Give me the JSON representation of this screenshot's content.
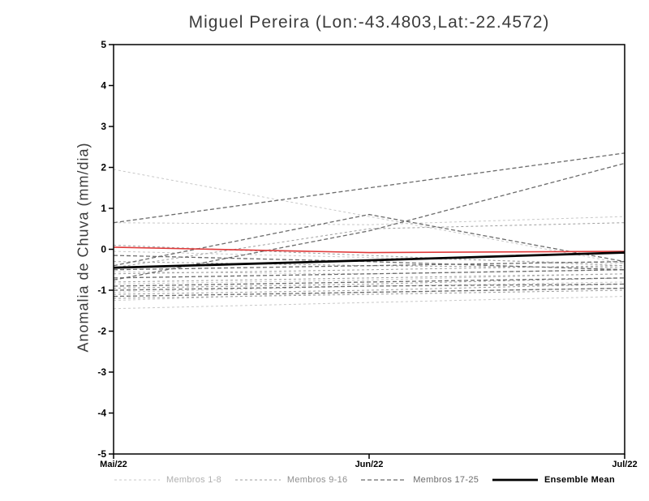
{
  "chart_data": {
    "type": "line",
    "title": "Miguel Pereira (Lon:-43.4803,Lat:-22.4572)",
    "ylabel": "Anomalia de Chuva (mm/dia)",
    "ylim": [
      -5,
      5
    ],
    "y_ticks": [
      5,
      4,
      3,
      2,
      1,
      0,
      -1,
      -2,
      -3,
      -4,
      -5
    ],
    "x_categories": [
      "Mai/22",
      "Jun/22",
      "Jul/22"
    ],
    "grid": false,
    "legend_position": "bottom",
    "groups": [
      {
        "name": "Membros 1-8",
        "color": "#c8c8c8",
        "dash": "3 3",
        "width": 1
      },
      {
        "name": "Membros 9-16",
        "color": "#9e9e9e",
        "dash": "3 3",
        "width": 1
      },
      {
        "name": "Membros 17-25",
        "color": "#6b6b6b",
        "dash": "5 3",
        "width": 1.3
      }
    ],
    "members": [
      {
        "group": 0,
        "values": [
          1.95,
          0.8,
          -0.35
        ]
      },
      {
        "group": 0,
        "values": [
          0.65,
          0.6,
          0.8
        ]
      },
      {
        "group": 0,
        "values": [
          -0.05,
          -0.2,
          -0.35
        ]
      },
      {
        "group": 0,
        "values": [
          -0.55,
          -0.6,
          -0.5
        ]
      },
      {
        "group": 0,
        "values": [
          -0.85,
          -0.75,
          -0.6
        ]
      },
      {
        "group": 0,
        "values": [
          -1.05,
          -0.9,
          -0.8
        ]
      },
      {
        "group": 0,
        "values": [
          -1.25,
          -1.05,
          -0.95
        ]
      },
      {
        "group": 0,
        "values": [
          -1.45,
          -1.3,
          -1.15
        ]
      },
      {
        "group": 1,
        "values": [
          0.1,
          -0.15,
          -0.4
        ]
      },
      {
        "group": 1,
        "values": [
          -0.3,
          -0.4,
          -0.45
        ]
      },
      {
        "group": 1,
        "values": [
          -0.6,
          -0.5,
          -0.4
        ]
      },
      {
        "group": 1,
        "values": [
          -0.8,
          -0.7,
          -0.6
        ]
      },
      {
        "group": 1,
        "values": [
          -0.95,
          -0.85,
          -0.7
        ]
      },
      {
        "group": 1,
        "values": [
          -1.1,
          -1.0,
          -0.85
        ]
      },
      {
        "group": 1,
        "values": [
          -1.2,
          -1.1,
          -1.0
        ]
      },
      {
        "group": 1,
        "values": [
          -0.45,
          0.5,
          0.65
        ]
      },
      {
        "group": 2,
        "values": [
          0.65,
          1.5,
          2.35
        ]
      },
      {
        "group": 2,
        "values": [
          -0.75,
          0.45,
          2.1
        ]
      },
      {
        "group": 2,
        "values": [
          -0.4,
          0.85,
          -0.3
        ]
      },
      {
        "group": 2,
        "values": [
          -0.5,
          -0.4,
          -0.3
        ]
      },
      {
        "group": 2,
        "values": [
          -0.7,
          -0.6,
          -0.5
        ]
      },
      {
        "group": 2,
        "values": [
          -0.9,
          -0.8,
          -0.7
        ]
      },
      {
        "group": 2,
        "values": [
          -1.0,
          -0.9,
          -0.85
        ]
      },
      {
        "group": 2,
        "values": [
          -1.15,
          -1.05,
          -0.95
        ]
      },
      {
        "group": 2,
        "values": [
          -0.15,
          -0.3,
          -0.5
        ]
      }
    ],
    "special_series": [
      {
        "name": "red-line",
        "color": "#e03a3a",
        "width": 1.6,
        "dash": "",
        "values": [
          0.05,
          -0.08,
          -0.05
        ]
      },
      {
        "name": "ensemble-mean-line",
        "color": "#000000",
        "width": 2.8,
        "dash": "",
        "values": [
          -0.45,
          -0.27,
          -0.08
        ]
      }
    ],
    "legend": [
      {
        "label": "Membros 1-8",
        "color": "#c8c8c8",
        "dash": "3 3",
        "width": 1,
        "text_color": "#b0b0b0"
      },
      {
        "label": "Membros 9-16",
        "color": "#9e9e9e",
        "dash": "3 3",
        "width": 1,
        "text_color": "#8f8f8f"
      },
      {
        "label": "Membros 17-25",
        "color": "#6b6b6b",
        "dash": "5 3",
        "width": 1.3,
        "text_color": "#6b6b6b"
      },
      {
        "label": "Ensemble Mean",
        "color": "#000000",
        "dash": "",
        "width": 2.8,
        "text_color": "#000000"
      }
    ],
    "frame_color": "#000000"
  }
}
